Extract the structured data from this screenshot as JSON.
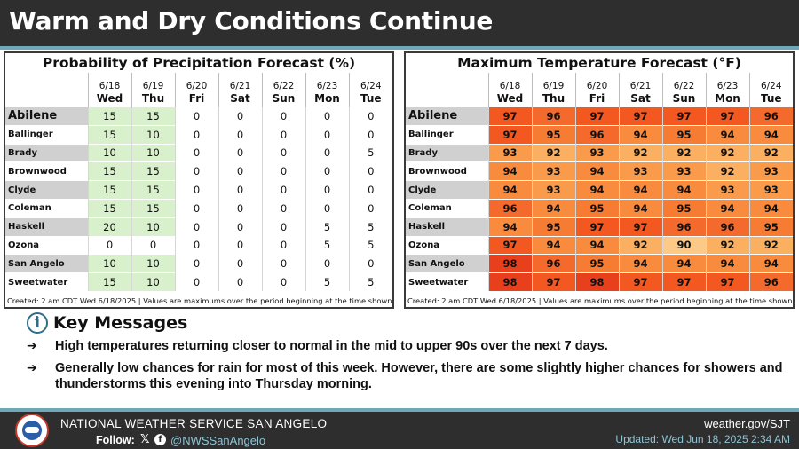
{
  "header": {
    "title": "Warm and Dry Conditions Continue"
  },
  "days": [
    {
      "date": "6/18",
      "dow": "Wed"
    },
    {
      "date": "6/19",
      "dow": "Thu"
    },
    {
      "date": "6/20",
      "dow": "Fri"
    },
    {
      "date": "6/21",
      "dow": "Sat"
    },
    {
      "date": "6/22",
      "dow": "Sun"
    },
    {
      "date": "6/23",
      "dow": "Mon"
    },
    {
      "date": "6/24",
      "dow": "Tue"
    }
  ],
  "cities": [
    "Abilene",
    "Ballinger",
    "Brady",
    "Brownwood",
    "Clyde",
    "Coleman",
    "Haskell",
    "Ozona",
    "San Angelo",
    "Sweetwater"
  ],
  "precip": {
    "title": "Probability of Precipitation Forecast (%)",
    "rows": [
      [
        15,
        15,
        0,
        0,
        0,
        0,
        0
      ],
      [
        15,
        10,
        0,
        0,
        0,
        0,
        0
      ],
      [
        10,
        10,
        0,
        0,
        0,
        0,
        5
      ],
      [
        15,
        15,
        0,
        0,
        0,
        0,
        0
      ],
      [
        15,
        15,
        0,
        0,
        0,
        0,
        0
      ],
      [
        15,
        15,
        0,
        0,
        0,
        0,
        0
      ],
      [
        20,
        10,
        0,
        0,
        0,
        5,
        5
      ],
      [
        0,
        0,
        0,
        0,
        0,
        5,
        5
      ],
      [
        10,
        10,
        0,
        0,
        0,
        0,
        0
      ],
      [
        15,
        10,
        0,
        0,
        0,
        5,
        5
      ]
    ],
    "footnote": "Created: 2 am CDT Wed 6/18/2025  |  Values are maximums over the period beginning at the time shown."
  },
  "temp": {
    "title": "Maximum Temperature Forecast (°F)",
    "rows": [
      [
        97,
        96,
        97,
        97,
        97,
        97,
        96
      ],
      [
        97,
        95,
        96,
        94,
        95,
        94,
        94
      ],
      [
        93,
        92,
        93,
        92,
        92,
        92,
        92
      ],
      [
        94,
        93,
        94,
        93,
        93,
        92,
        93
      ],
      [
        94,
        93,
        94,
        94,
        94,
        93,
        93
      ],
      [
        96,
        94,
        95,
        94,
        95,
        94,
        94
      ],
      [
        94,
        95,
        97,
        97,
        96,
        96,
        95
      ],
      [
        97,
        94,
        94,
        92,
        90,
        92,
        92
      ],
      [
        98,
        96,
        95,
        94,
        94,
        94,
        94
      ],
      [
        98,
        97,
        98,
        97,
        97,
        97,
        96
      ]
    ],
    "footnote": "Created: 2 am CDT Wed 6/18/2025  |  Values are maximums over the period beginning at the time shown."
  },
  "colors": {
    "t98": "#e8401c",
    "t97": "#f2581f",
    "t96": "#f46a2c",
    "t95": "#f67b33",
    "t94": "#f88b3e",
    "t93": "#f99b4b",
    "t92": "#fab060",
    "t91": "#fbbd73",
    "t90": "#fcc987"
  },
  "key_messages": {
    "title": "Key Messages",
    "info_icon": "i",
    "bullet": "➔",
    "items": [
      "High temperatures returning closer to normal in the mid to upper 90s over the next 7 days.",
      "Generally low chances for rain for most of this week. However, there are some slightly higher chances for showers and thunderstorms this evening into Thursday morning."
    ]
  },
  "footer": {
    "org": "NATIONAL WEATHER SERVICE SAN ANGELO",
    "follow_label": "Follow:",
    "x_icon": "𝕏",
    "fb_icon": "f",
    "handle": "@NWSSanAngelo",
    "url": "weather.gov/SJT",
    "updated": "Updated: Wed Jun 18, 2025 2:34 AM"
  }
}
